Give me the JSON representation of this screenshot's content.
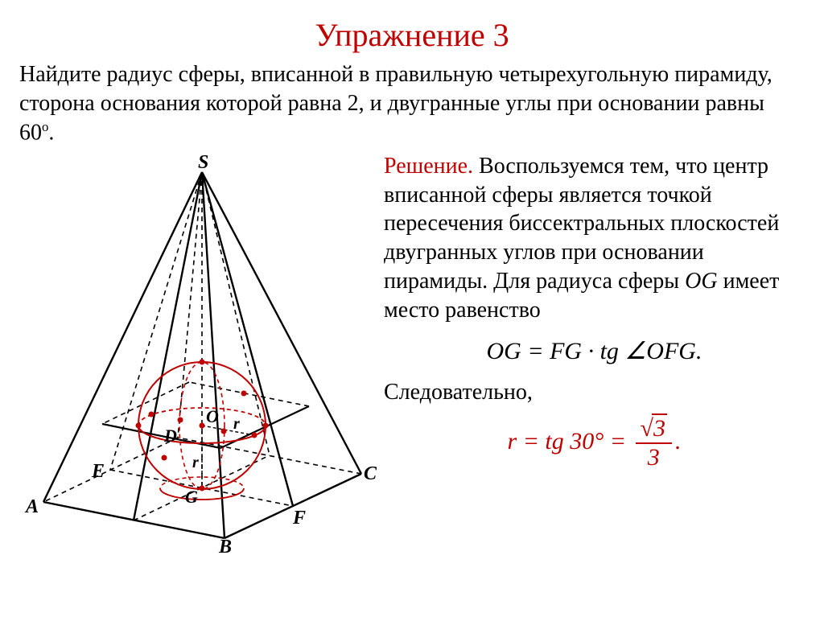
{
  "title": "Упражнение 3",
  "problem_html": "Найдите радиус сферы, вписанной в правильную четырехугольную пирамиду, сторона основания которой равна 2, и двугранные углы при основании равны 60<sup>о</sup>.",
  "solution_label": "Решение.",
  "solution_body": " Воспользуемся тем, что центр вписанной сферы является точкой пересечения биссектральных плоскостей двугранных углов при основании пирамиды. Для радиуса сферы ",
  "og_italic": "OG",
  "solution_body_tail": " имеет место равенство",
  "formula1": "OG = FG · tg ∠OFG.",
  "therefore": "Следовательно,",
  "formula2_prefix": "r = tg 30° = ",
  "sqrt_radicand": "3",
  "frac_den": "3",
  "formula2_suffix": ".",
  "diagram": {
    "labels": {
      "S": "S",
      "A": "A",
      "B": "B",
      "C": "C",
      "D": "D",
      "E": "E",
      "F": "F",
      "G": "G",
      "O": "O"
    },
    "r_label": "r",
    "colors": {
      "line": "#000000",
      "sphere": "#c00000",
      "dot": "#c00000"
    },
    "stroke_solid": 2.4,
    "stroke_thin": 1.6
  }
}
